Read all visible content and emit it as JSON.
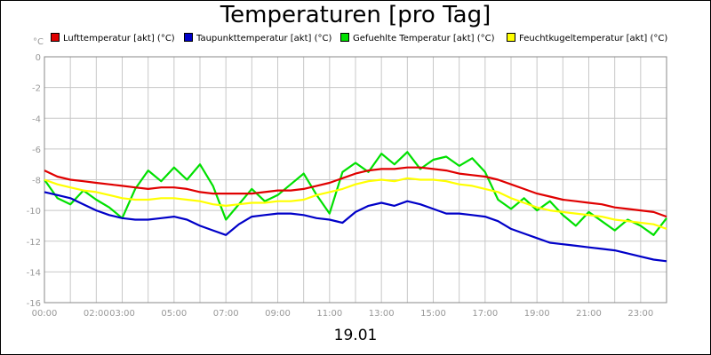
{
  "chart_data": {
    "type": "line",
    "title": "Temperaturen [pro Tag]",
    "xlabel": "19.01",
    "ylabel": "°C",
    "ylim": [
      -16,
      0
    ],
    "yticks": [
      0,
      -2,
      -4,
      -6,
      -8,
      -10,
      -12,
      -14,
      -16
    ],
    "xlim": [
      0,
      24
    ],
    "xticks": [
      {
        "h": 0,
        "label": "00:00"
      },
      {
        "h": 2,
        "label": "02:00"
      },
      {
        "h": 3,
        "label": "03:00"
      },
      {
        "h": 5,
        "label": "05:00"
      },
      {
        "h": 7,
        "label": "07:00"
      },
      {
        "h": 9,
        "label": "09:00"
      },
      {
        "h": 11,
        "label": "11:00"
      },
      {
        "h": 13,
        "label": "13:00"
      },
      {
        "h": 15,
        "label": "15:00"
      },
      {
        "h": 17,
        "label": "17:00"
      },
      {
        "h": 19,
        "label": "19:00"
      },
      {
        "h": 21,
        "label": "21:00"
      },
      {
        "h": 23,
        "label": "23:00"
      }
    ],
    "grid": true,
    "legend_position": "top",
    "series": [
      {
        "name": "Lufttemperatur [akt] (°C)",
        "color": "#e00000",
        "x": [
          0,
          0.5,
          1,
          1.5,
          2,
          2.5,
          3,
          3.5,
          4,
          4.5,
          5,
          5.5,
          6,
          6.5,
          7,
          7.5,
          8,
          8.5,
          9,
          9.5,
          10,
          10.5,
          11,
          11.5,
          12,
          12.5,
          13,
          13.5,
          14,
          14.5,
          15,
          15.5,
          16,
          16.5,
          17,
          17.5,
          18,
          18.5,
          19,
          19.5,
          20,
          20.5,
          21,
          21.5,
          22,
          22.5,
          23,
          23.5,
          24
        ],
        "y": [
          -7.4,
          -7.8,
          -8.0,
          -8.1,
          -8.2,
          -8.3,
          -8.4,
          -8.5,
          -8.6,
          -8.5,
          -8.5,
          -8.6,
          -8.8,
          -8.9,
          -8.9,
          -8.9,
          -8.9,
          -8.8,
          -8.7,
          -8.7,
          -8.6,
          -8.4,
          -8.2,
          -7.9,
          -7.6,
          -7.4,
          -7.3,
          -7.3,
          -7.2,
          -7.2,
          -7.3,
          -7.4,
          -7.6,
          -7.7,
          -7.8,
          -8.0,
          -8.3,
          -8.6,
          -8.9,
          -9.1,
          -9.3,
          -9.4,
          -9.5,
          -9.6,
          -9.8,
          -9.9,
          -10.0,
          -10.1,
          -10.4
        ]
      },
      {
        "name": "Taupunkttemperatur [akt] (°C)",
        "color": "#0000c8",
        "x": [
          0,
          0.5,
          1,
          1.5,
          2,
          2.5,
          3,
          3.5,
          4,
          4.5,
          5,
          5.5,
          6,
          6.5,
          7,
          7.5,
          8,
          8.5,
          9,
          9.5,
          10,
          10.5,
          11,
          11.5,
          12,
          12.5,
          13,
          13.5,
          14,
          14.5,
          15,
          15.5,
          16,
          16.5,
          17,
          17.5,
          18,
          18.5,
          19,
          19.5,
          20,
          20.5,
          21,
          21.5,
          22,
          22.5,
          23,
          23.5,
          24
        ],
        "y": [
          -8.8,
          -9.0,
          -9.2,
          -9.6,
          -10.0,
          -10.3,
          -10.5,
          -10.6,
          -10.6,
          -10.5,
          -10.4,
          -10.6,
          -11.0,
          -11.3,
          -11.6,
          -10.9,
          -10.4,
          -10.3,
          -10.2,
          -10.2,
          -10.3,
          -10.5,
          -10.6,
          -10.8,
          -10.1,
          -9.7,
          -9.5,
          -9.7,
          -9.4,
          -9.6,
          -9.9,
          -10.2,
          -10.2,
          -10.3,
          -10.4,
          -10.7,
          -11.2,
          -11.5,
          -11.8,
          -12.1,
          -12.2,
          -12.3,
          -12.4,
          -12.5,
          -12.6,
          -12.8,
          -13.0,
          -13.2,
          -13.3
        ]
      },
      {
        "name": "Gefuehlte Temperatur [akt] (°C)",
        "color": "#00e000",
        "x": [
          0,
          0.5,
          1,
          1.5,
          2,
          2.5,
          3,
          3.5,
          4,
          4.5,
          5,
          5.5,
          6,
          6.5,
          7,
          7.5,
          8,
          8.5,
          9,
          9.5,
          10,
          10.5,
          11,
          11.5,
          12,
          12.5,
          13,
          13.5,
          14,
          14.5,
          15,
          15.5,
          16,
          16.5,
          17,
          17.5,
          18,
          18.5,
          19,
          19.5,
          20,
          20.5,
          21,
          21.5,
          22,
          22.5,
          23,
          23.5,
          24
        ],
        "y": [
          -8.0,
          -9.2,
          -9.6,
          -8.7,
          -9.3,
          -9.8,
          -10.5,
          -8.6,
          -7.4,
          -8.1,
          -7.2,
          -8.0,
          -7.0,
          -8.4,
          -10.6,
          -9.6,
          -8.6,
          -9.4,
          -9.0,
          -8.3,
          -7.6,
          -9.0,
          -10.2,
          -7.5,
          -6.9,
          -7.5,
          -6.3,
          -7.0,
          -6.2,
          -7.3,
          -6.7,
          -6.5,
          -7.1,
          -6.6,
          -7.5,
          -9.3,
          -9.9,
          -9.2,
          -10.0,
          -9.4,
          -10.3,
          -11.0,
          -10.1,
          -10.7,
          -11.3,
          -10.6,
          -11.0,
          -11.6,
          -10.5
        ]
      },
      {
        "name": "Feuchtkugeltemperatur [akt] (°C)",
        "color": "#ffff00",
        "x": [
          0,
          0.5,
          1,
          1.5,
          2,
          2.5,
          3,
          3.5,
          4,
          4.5,
          5,
          5.5,
          6,
          6.5,
          7,
          7.5,
          8,
          8.5,
          9,
          9.5,
          10,
          10.5,
          11,
          11.5,
          12,
          12.5,
          13,
          13.5,
          14,
          14.5,
          15,
          15.5,
          16,
          16.5,
          17,
          17.5,
          18,
          18.5,
          19,
          19.5,
          20,
          20.5,
          21,
          21.5,
          22,
          22.5,
          23,
          23.5,
          24
        ],
        "y": [
          -8.0,
          -8.3,
          -8.5,
          -8.7,
          -8.8,
          -9.0,
          -9.2,
          -9.3,
          -9.3,
          -9.2,
          -9.2,
          -9.3,
          -9.4,
          -9.6,
          -9.7,
          -9.6,
          -9.5,
          -9.5,
          -9.4,
          -9.4,
          -9.3,
          -9.0,
          -8.8,
          -8.6,
          -8.3,
          -8.1,
          -8.0,
          -8.1,
          -7.9,
          -8.0,
          -8.0,
          -8.1,
          -8.3,
          -8.4,
          -8.6,
          -8.8,
          -9.2,
          -9.5,
          -9.8,
          -10.0,
          -10.1,
          -10.2,
          -10.3,
          -10.4,
          -10.6,
          -10.7,
          -10.8,
          -10.9,
          -11.2
        ]
      }
    ]
  }
}
